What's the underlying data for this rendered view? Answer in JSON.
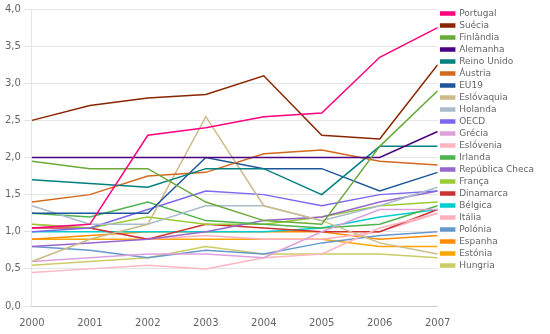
{
  "chart_data": {
    "type": "line",
    "x": [
      2000,
      2001,
      2002,
      2003,
      2004,
      2005,
      2006,
      2007
    ],
    "series": [
      {
        "name": "Portugal",
        "color": "#FF007F",
        "values": [
          1.05,
          1.1,
          2.3,
          2.4,
          2.55,
          2.6,
          3.35,
          3.75
        ]
      },
      {
        "name": "Suécia",
        "color": "#8B2500",
        "values": [
          2.5,
          2.7,
          2.8,
          2.85,
          3.1,
          2.3,
          2.25,
          3.25
        ]
      },
      {
        "name": "Finlândia",
        "color": "#6AAA3A",
        "values": [
          1.95,
          1.85,
          1.85,
          1.4,
          1.15,
          1.1,
          2.15,
          2.9
        ]
      },
      {
        "name": "Alemanha",
        "color": "#4B0082",
        "values": [
          2.0,
          2.0,
          2.0,
          2.0,
          2.0,
          2.0,
          2.0,
          2.35
        ]
      },
      {
        "name": "Reino Unido",
        "color": "#008080",
        "values": [
          1.7,
          1.65,
          1.6,
          1.85,
          1.85,
          1.5,
          2.15,
          2.15
        ]
      },
      {
        "name": "Áustria",
        "color": "#D2691E",
        "values": [
          1.4,
          1.5,
          1.75,
          1.8,
          2.05,
          2.1,
          1.95,
          1.9
        ]
      },
      {
        "name": "EU19",
        "color": "#1E5799",
        "values": [
          1.25,
          1.25,
          1.25,
          2.0,
          1.85,
          1.85,
          1.55,
          1.8
        ]
      },
      {
        "name": "Eslóvaquia",
        "color": "#CCBB88",
        "values": [
          0.6,
          0.9,
          1.1,
          2.55,
          1.35,
          1.15,
          0.85,
          0.7
        ]
      },
      {
        "name": "Holanda",
        "color": "#AABBCC",
        "values": [
          1.35,
          1.1,
          1.1,
          1.35,
          1.35,
          1.15,
          1.35,
          1.6
        ]
      },
      {
        "name": "OECD",
        "color": "#7B68EE",
        "values": [
          1.0,
          1.05,
          1.3,
          1.55,
          1.5,
          1.35,
          1.5,
          1.55
        ]
      },
      {
        "name": "Grécia",
        "color": "#DDA0DD",
        "values": [
          0.6,
          0.65,
          0.7,
          0.7,
          0.65,
          1.0,
          1.3,
          1.3
        ]
      },
      {
        "name": "Eslóvenia",
        "color": "#FFB6C1",
        "values": [
          0.45,
          0.5,
          0.55,
          0.5,
          0.65,
          0.7,
          1.05,
          1.25
        ]
      },
      {
        "name": "Irlanda",
        "color": "#4DB34D",
        "values": [
          1.25,
          1.2,
          1.4,
          1.15,
          1.1,
          1.05,
          1.1,
          1.35
        ]
      },
      {
        "name": "República Checa",
        "color": "#9966CC",
        "values": [
          0.8,
          0.85,
          0.9,
          1.0,
          1.15,
          1.2,
          1.4,
          1.55
        ]
      },
      {
        "name": "França",
        "color": "#99CC33",
        "values": [
          1.1,
          1.05,
          1.2,
          1.1,
          1.1,
          1.2,
          1.35,
          1.4
        ]
      },
      {
        "name": "Dinamarca",
        "color": "#CC3333",
        "values": [
          1.05,
          1.05,
          0.9,
          1.1,
          1.05,
          1.0,
          1.0,
          1.3
        ]
      },
      {
        "name": "Bélgica",
        "color": "#00CED1",
        "values": [
          1.0,
          1.0,
          1.0,
          1.0,
          1.0,
          1.05,
          1.2,
          1.3
        ]
      },
      {
        "name": "Itália",
        "color": "#FFB0C0",
        "values": [
          1.1,
          1.05,
          0.9,
          0.95,
          0.9,
          0.9,
          1.0,
          1.25
        ]
      },
      {
        "name": "Polónia",
        "color": "#6699CC",
        "values": [
          0.8,
          0.75,
          0.65,
          0.75,
          0.7,
          0.85,
          0.95,
          1.0
        ]
      },
      {
        "name": "Espanha",
        "color": "#FF8C00",
        "values": [
          0.9,
          0.95,
          1.0,
          1.0,
          1.0,
          1.0,
          0.9,
          0.95
        ]
      },
      {
        "name": "Estónia",
        "color": "#FFA500",
        "values": [
          0.9,
          0.9,
          0.9,
          0.9,
          0.9,
          0.9,
          0.8,
          0.8
        ]
      },
      {
        "name": "Hungria",
        "color": "#CCCC66",
        "values": [
          0.55,
          0.6,
          0.65,
          0.8,
          0.7,
          0.7,
          0.7,
          0.65
        ]
      }
    ],
    "xlim": [
      2000,
      2007
    ],
    "xticks": [
      2000,
      2001,
      2002,
      2003,
      2004,
      2005,
      2006,
      2007
    ],
    "ylim": [
      0.0,
      4.0
    ],
    "yticks": [
      {
        "value": 0.0,
        "label": "0,0"
      },
      {
        "value": 0.5,
        "label": "0,5"
      },
      {
        "value": 1.0,
        "label": "1,0"
      },
      {
        "value": 1.5,
        "label": "1,5"
      },
      {
        "value": 2.0,
        "label": "2,0"
      },
      {
        "value": 2.5,
        "label": "2,5"
      },
      {
        "value": 3.0,
        "label": "3,0"
      },
      {
        "value": 3.5,
        "label": "3,5"
      },
      {
        "value": 4.0,
        "label": "4,0"
      }
    ],
    "grid": "y",
    "legend": "right"
  }
}
